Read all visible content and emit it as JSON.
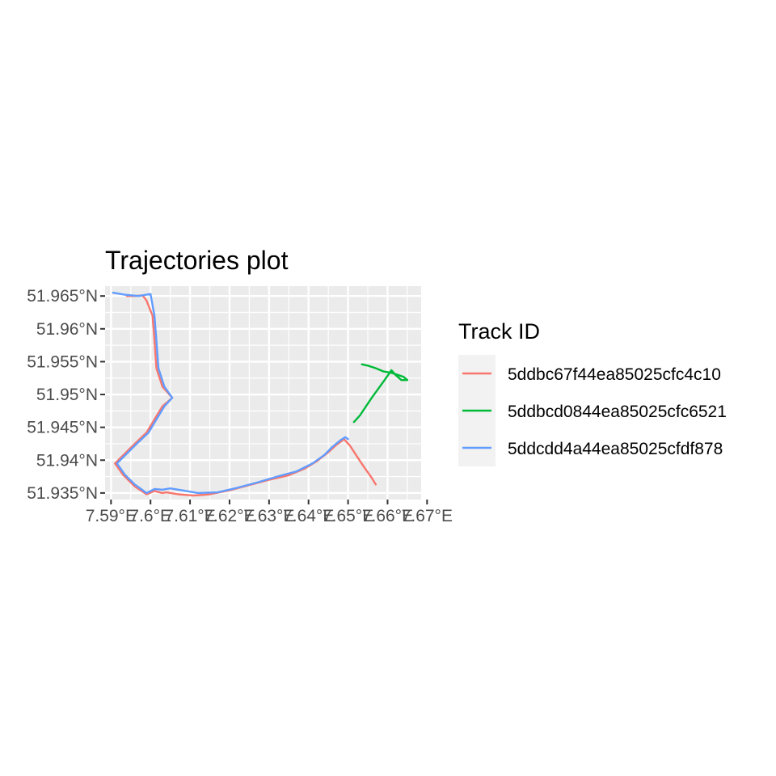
{
  "chart_data": {
    "type": "line",
    "title": "Trajectories plot",
    "xlabel": "",
    "ylabel": "",
    "xlim": [
      7.5885,
      7.6685
    ],
    "ylim": [
      51.934,
      51.9665
    ],
    "x_ticks": [
      {
        "value": 7.59,
        "label": "7.59°E"
      },
      {
        "value": 7.6,
        "label": "7.6°E"
      },
      {
        "value": 7.61,
        "label": "7.61°E"
      },
      {
        "value": 7.62,
        "label": "7.62°E"
      },
      {
        "value": 7.63,
        "label": "7.63°E"
      },
      {
        "value": 7.64,
        "label": "7.64°E"
      },
      {
        "value": 7.65,
        "label": "7.65°E"
      },
      {
        "value": 7.66,
        "label": "7.66°E"
      },
      {
        "value": 7.67,
        "label": "7.67°E"
      }
    ],
    "y_ticks": [
      {
        "value": 51.935,
        "label": "51.935°N"
      },
      {
        "value": 51.94,
        "label": "51.94°N"
      },
      {
        "value": 51.945,
        "label": "51.945°N"
      },
      {
        "value": 51.95,
        "label": "51.95°N"
      },
      {
        "value": 51.955,
        "label": "51.955°N"
      },
      {
        "value": 51.96,
        "label": "51.96°N"
      },
      {
        "value": 51.965,
        "label": "51.965°N"
      }
    ],
    "grid": true,
    "legend": {
      "title": "Track ID",
      "position": "right"
    },
    "series": [
      {
        "name": "5ddbc67f44ea85025cfc4c10",
        "color": "#F8766D",
        "points": [
          [
            7.657,
            51.9363
          ],
          [
            7.656,
            51.9373
          ],
          [
            7.654,
            51.939
          ],
          [
            7.652,
            51.9408
          ],
          [
            7.6505,
            51.9422
          ],
          [
            7.649,
            51.9432
          ],
          [
            7.647,
            51.9423
          ],
          [
            7.645,
            51.9412
          ],
          [
            7.642,
            51.9398
          ],
          [
            7.639,
            51.9387
          ],
          [
            7.635,
            51.9377
          ],
          [
            7.63,
            51.937
          ],
          [
            7.625,
            51.9362
          ],
          [
            7.62,
            51.9354
          ],
          [
            7.615,
            51.9348
          ],
          [
            7.611,
            51.9346
          ],
          [
            7.607,
            51.9348
          ],
          [
            7.604,
            51.9351
          ],
          [
            7.603,
            51.935
          ],
          [
            7.601,
            51.9353
          ],
          [
            7.599,
            51.9348
          ],
          [
            7.596,
            51.936
          ],
          [
            7.593,
            51.9378
          ],
          [
            7.591,
            51.9395
          ],
          [
            7.593,
            51.9407
          ],
          [
            7.596,
            51.9425
          ],
          [
            7.599,
            51.9442
          ],
          [
            7.601,
            51.9462
          ],
          [
            7.603,
            51.9482
          ],
          [
            7.6055,
            51.9495
          ],
          [
            7.603,
            51.9512
          ],
          [
            7.6015,
            51.954
          ],
          [
            7.601,
            51.9582
          ],
          [
            7.6005,
            51.962
          ],
          [
            7.599,
            51.9643
          ],
          [
            7.598,
            51.9651
          ],
          [
            7.596,
            51.965
          ],
          [
            7.594,
            51.965
          ]
        ]
      },
      {
        "name": "5ddbcd0844ea85025cfc6521",
        "color": "#00BA38",
        "points": [
          [
            7.6515,
            51.9458
          ],
          [
            7.653,
            51.9468
          ],
          [
            7.656,
            51.9495
          ],
          [
            7.659,
            51.952
          ],
          [
            7.661,
            51.9537
          ],
          [
            7.662,
            51.953
          ],
          [
            7.6635,
            51.9522
          ],
          [
            7.665,
            51.9522
          ],
          [
            7.664,
            51.9527
          ],
          [
            7.6625,
            51.953
          ],
          [
            7.661,
            51.9533
          ],
          [
            7.659,
            51.9535
          ],
          [
            7.657,
            51.954
          ],
          [
            7.655,
            51.9544
          ],
          [
            7.6535,
            51.9546
          ]
        ]
      },
      {
        "name": "5ddcdd4a44ea85025cfdf878",
        "color": "#619CFF",
        "points": [
          [
            7.5905,
            51.9655
          ],
          [
            7.5935,
            51.9652
          ],
          [
            7.597,
            51.965
          ],
          [
            7.6,
            51.9653
          ],
          [
            7.601,
            51.962
          ],
          [
            7.6015,
            51.9582
          ],
          [
            7.602,
            51.954
          ],
          [
            7.6035,
            51.9512
          ],
          [
            7.6055,
            51.9495
          ],
          [
            7.6035,
            51.9482
          ],
          [
            7.6015,
            51.9462
          ],
          [
            7.5995,
            51.9442
          ],
          [
            7.5965,
            51.9425
          ],
          [
            7.5935,
            51.9407
          ],
          [
            7.5915,
            51.9395
          ],
          [
            7.5935,
            51.9378
          ],
          [
            7.596,
            51.9363
          ],
          [
            7.599,
            51.935
          ],
          [
            7.601,
            51.9356
          ],
          [
            7.603,
            51.9355
          ],
          [
            7.605,
            51.9357
          ],
          [
            7.608,
            51.9354
          ],
          [
            7.612,
            51.935
          ],
          [
            7.617,
            51.9351
          ],
          [
            7.622,
            51.9358
          ],
          [
            7.627,
            51.9366
          ],
          [
            7.632,
            51.9375
          ],
          [
            7.637,
            51.9383
          ],
          [
            7.641,
            51.9395
          ],
          [
            7.644,
            51.9408
          ],
          [
            7.646,
            51.942
          ],
          [
            7.648,
            51.943
          ],
          [
            7.6493,
            51.9435
          ],
          [
            7.65,
            51.9432
          ]
        ]
      }
    ]
  }
}
